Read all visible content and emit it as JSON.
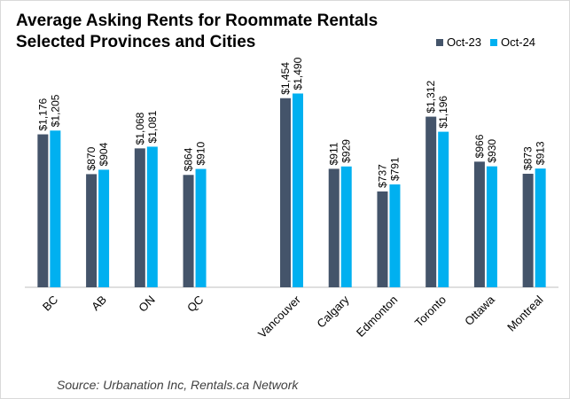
{
  "chart_data": {
    "type": "bar",
    "title": "Average Asking Rents for Roommate Rentals\nSelected Provinces and Cities",
    "title_lines": [
      "Average Asking Rents for Roommate Rentals",
      "Selected Provinces and Cities"
    ],
    "categories": [
      "BC",
      "AB",
      "ON",
      "QC",
      "",
      "Vancouver",
      "Calgary",
      "Edmonton",
      "Toronto",
      "Ottawa",
      "Montreal"
    ],
    "series": [
      {
        "name": "Oct-23",
        "color": "#44546a",
        "values": [
          1176,
          870,
          1068,
          864,
          null,
          1454,
          911,
          737,
          1312,
          966,
          873
        ],
        "labels": [
          "$1,176",
          "$870",
          "$1,068",
          "$864",
          "",
          "$1,454",
          "$911",
          "$737",
          "$1,312",
          "$966",
          "$873"
        ]
      },
      {
        "name": "Oct-24",
        "color": "#00b0f0",
        "values": [
          1205,
          904,
          1081,
          910,
          null,
          1490,
          929,
          791,
          1196,
          930,
          913
        ],
        "labels": [
          "$1,205",
          "$904",
          "$1,081",
          "$910",
          "",
          "$1,490",
          "$929",
          "$791",
          "$1,196",
          "$930",
          "$913"
        ]
      }
    ],
    "ylim": [
      0,
      1500
    ],
    "grid": false,
    "legend_position": "top-right"
  },
  "source": "Source: Urbanation Inc, Rentals.ca Network"
}
